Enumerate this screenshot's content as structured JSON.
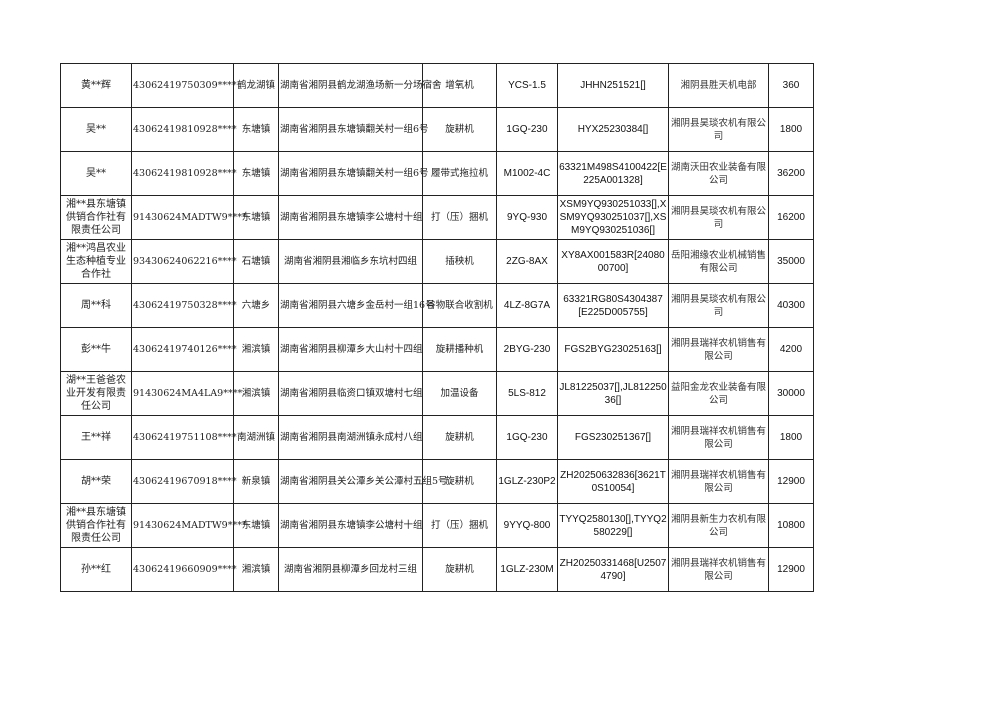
{
  "rows": [
    {
      "name": "黄**辉",
      "id": "43062419750309****",
      "town": "鹤龙湖镇",
      "address": "湖南省湘阴县鹤龙湖渔场新一分场宿舍",
      "machine": "增氧机",
      "model": "YCS-1.5",
      "serial": "JHHN251521[]",
      "dealer": "湘阴县胜天机电部",
      "amount": "360"
    },
    {
      "name": "吴**",
      "id": "43062419810928****",
      "town": "东塘镇",
      "address": "湖南省湘阴县东塘镇翻关村一组6号",
      "machine": "旋耕机",
      "model": "1GQ-230",
      "serial": "HYX25230384[]",
      "dealer": "湘阴县昊琰农机有限公司",
      "amount": "1800"
    },
    {
      "name": "吴**",
      "id": "43062419810928****",
      "town": "东塘镇",
      "address": "湖南省湘阴县东塘镇翻关村一组6号",
      "machine": "履带式拖拉机",
      "model": "M1002-4C",
      "serial": "63321M498S4100422[E225A001328]",
      "dealer": "湖南沃田农业装备有限公司",
      "amount": "36200"
    },
    {
      "name": "湘**县东塘镇供销合作社有限责任公司",
      "id": "91430624MADTW9****",
      "town": "东塘镇",
      "address": "湖南省湘阴县东塘镇李公塘村十组",
      "machine": "打（压）捆机",
      "model": "9YQ-930",
      "serial": "XSM9YQ930251033[],XSM9YQ930251037[],XSM9YQ930251036[]",
      "dealer": "湘阴县昊琰农机有限公司",
      "amount": "16200"
    },
    {
      "name": "湘**鸿昌农业生态种植专业合作社",
      "id": "93430624062216****",
      "town": "石塘镇",
      "address": "湖南省湘阴县湘临乡东坑村四组",
      "machine": "插秧机",
      "model": "2ZG-8AX",
      "serial": "XY8AX001583R[2408000700]",
      "dealer": "岳阳湘缘农业机械销售有限公司",
      "amount": "35000"
    },
    {
      "name": "周**科",
      "id": "43062419750328****",
      "town": "六塘乡",
      "address": "湖南省湘阴县六塘乡金岳村一组16号",
      "machine": "谷物联合收割机",
      "model": "4LZ-8G7A",
      "serial": "63321RG80S4304387[E225D005755]",
      "dealer": "湘阴县昊琰农机有限公司",
      "amount": "40300"
    },
    {
      "name": "彭**牛",
      "id": "43062419740126****",
      "town": "湘滨镇",
      "address": "湖南省湘阴县柳潭乡大山村十四组",
      "machine": "旋耕播种机",
      "model": "2BYG-230",
      "serial": "FGS2BYG23025163[]",
      "dealer": "湘阴县瑞祥农机销售有限公司",
      "amount": "4200"
    },
    {
      "name": "湖**王爸爸农业开发有限责任公司",
      "id": "91430624MA4LA9****",
      "town": "湘滨镇",
      "address": "湖南省湘阴县临资口镇双塘村七组",
      "machine": "加温设备",
      "model": "5LS-812",
      "serial": "JL81225037[],JL81225036[]",
      "dealer": "益阳金龙农业装备有限公司",
      "amount": "30000"
    },
    {
      "name": "王**祥",
      "id": "43062419751108****",
      "town": "南湖洲镇",
      "address": "湖南省湘阴县南湖洲镇永成村八组",
      "machine": "旋耕机",
      "model": "1GQ-230",
      "serial": "FGS230251367[]",
      "dealer": "湘阴县瑞祥农机销售有限公司",
      "amount": "1800"
    },
    {
      "name": "胡**荣",
      "id": "43062419670918****",
      "town": "新泉镇",
      "address": "湖南省湘阴县关公潭乡关公潭村五组5号",
      "machine": "旋耕机",
      "model": "1GLZ-230P2",
      "serial": "ZH20250632836[3621T0S10054]",
      "dealer": "湘阴县瑞祥农机销售有限公司",
      "amount": "12900"
    },
    {
      "name": "湘**县东塘镇供销合作社有限责任公司",
      "id": "91430624MADTW9****",
      "town": "东塘镇",
      "address": "湖南省湘阴县东塘镇李公塘村十组",
      "machine": "打（压）捆机",
      "model": "9YYQ-800",
      "serial": "TYYQ2580130[],TYYQ2580229[]",
      "dealer": "湘阴县新生力农机有限公司",
      "amount": "10800"
    },
    {
      "name": "孙**红",
      "id": "43062419660909****",
      "town": "湘滨镇",
      "address": "湖南省湘阴县柳潭乡回龙村三组",
      "machine": "旋耕机",
      "model": "1GLZ-230M",
      "serial": "ZH20250331468[U25074790]",
      "dealer": "湘阴县瑞祥农机销售有限公司",
      "amount": "12900"
    }
  ]
}
